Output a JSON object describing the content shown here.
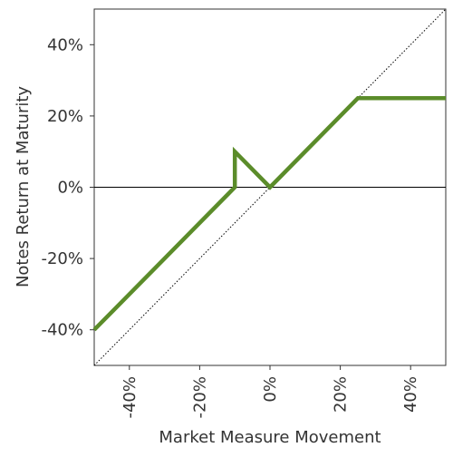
{
  "chart_data": {
    "type": "line",
    "x_label": "Market Measure Movement",
    "y_label": "Notes Return at Maturity",
    "x": [
      -50,
      -10,
      -10,
      0,
      25,
      50
    ],
    "series": [
      {
        "color": "#5b8c2a",
        "values": [
          -40,
          0,
          10,
          0,
          25,
          25
        ]
      }
    ],
    "xlim": [
      -50,
      50
    ],
    "ylim": [
      -50,
      50
    ],
    "xticks": [
      {
        "value": -40,
        "label": "-40%"
      },
      {
        "value": -20,
        "label": "-20%"
      },
      {
        "value": 0,
        "label": "0%"
      },
      {
        "value": 20,
        "label": "20%"
      },
      {
        "value": 40,
        "label": "40%"
      }
    ],
    "yticks": [
      {
        "value": 40,
        "label": "40%"
      },
      {
        "value": 20,
        "label": "20%"
      },
      {
        "value": 0,
        "label": "0%"
      },
      {
        "value": -20,
        "label": "-20%"
      },
      {
        "value": -40,
        "label": "-40%"
      }
    ]
  }
}
